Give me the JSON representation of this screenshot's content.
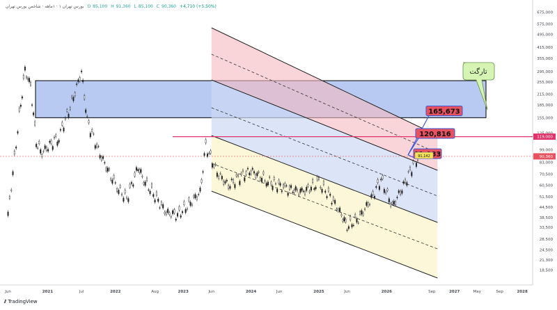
{
  "header": {
    "symbol": "بورس تهران ۱ · ۱ماهه · شاخص بورس تهران",
    "o_label": "O",
    "o": "85,100",
    "h_label": "H",
    "h": "91,360",
    "l_label": "L",
    "l": "85,100",
    "c_label": "C",
    "c": "90,360",
    "change": "+4,710 (+5.50%)"
  },
  "brand": "TradingView",
  "colors": {
    "target_box": "#7d9ee6",
    "red_label": "#e8515f",
    "price_tag": "#e8515f",
    "resistance_line": "#e0336b",
    "callout_fill": "#d6f5b5",
    "channel_upper": "#f5b9c0",
    "channel_mid": "#cdd8f3",
    "channel_lower": "#fbf5cf",
    "candle_up": "#26a69a",
    "candle_down": "#ef5350"
  },
  "chart_data": {
    "type": "candlestick",
    "title": "",
    "y_scale": "log",
    "ylim": [
      15000,
      700000
    ],
    "y_ticks": [
      "675,000",
      "575,000",
      "495,000",
      "415,000",
      "355,000",
      "295,000",
      "255,000",
      "215,000",
      "185,000",
      "155,000",
      "125,000",
      "99,000",
      "83,000",
      "70,500",
      "60,500",
      "51,500",
      "44,500",
      "38,500",
      "33,500",
      "28,500",
      "24,500",
      "21,300",
      "18,500"
    ],
    "y_tick_values": [
      675000,
      575000,
      495000,
      415000,
      355000,
      295000,
      255000,
      215000,
      185000,
      155000,
      125000,
      99000,
      83000,
      70500,
      60500,
      51500,
      44500,
      38500,
      33500,
      28500,
      24500,
      21300,
      18500
    ],
    "x_ticks": [
      "Jun",
      "2021",
      "Jul",
      "2022",
      "Aug",
      "2023",
      "Jun",
      "2024",
      "Jun",
      "2025",
      "Jun",
      "2026",
      "Sep",
      "2027",
      "May",
      "Sep",
      "2028"
    ],
    "x_tick_dates": [
      "2020-06",
      "2021-01",
      "2021-07",
      "2022-01",
      "2022-08",
      "2023-01",
      "2023-06",
      "2024-01",
      "2024-06",
      "2025-01",
      "2025-06",
      "2026-01",
      "2026-09",
      "2027-01",
      "2027-05",
      "2027-09",
      "2028-01"
    ],
    "price_series": [
      {
        "date": "2020-06",
        "value": 40000
      },
      {
        "date": "2020-08",
        "value": 160000
      },
      {
        "date": "2020-09",
        "value": 300000
      },
      {
        "date": "2020-10",
        "value": 240000
      },
      {
        "date": "2020-11",
        "value": 110000
      },
      {
        "date": "2020-12",
        "value": 95000
      },
      {
        "date": "2021-03",
        "value": 120000
      },
      {
        "date": "2021-05",
        "value": 180000
      },
      {
        "date": "2021-07",
        "value": 295000
      },
      {
        "date": "2021-08",
        "value": 150000
      },
      {
        "date": "2021-10",
        "value": 98000
      },
      {
        "date": "2022-01",
        "value": 60000
      },
      {
        "date": "2022-03",
        "value": 50000
      },
      {
        "date": "2022-05",
        "value": 78000
      },
      {
        "date": "2022-06",
        "value": 65000
      },
      {
        "date": "2022-08",
        "value": 52000
      },
      {
        "date": "2022-10",
        "value": 41000
      },
      {
        "date": "2022-12",
        "value": 40000
      },
      {
        "date": "2023-02",
        "value": 46000
      },
      {
        "date": "2023-04",
        "value": 55000
      },
      {
        "date": "2023-05",
        "value": 105000
      },
      {
        "date": "2023-07",
        "value": 72000
      },
      {
        "date": "2023-09",
        "value": 60000
      },
      {
        "date": "2023-11",
        "value": 68000
      },
      {
        "date": "2024-01",
        "value": 74000
      },
      {
        "date": "2024-04",
        "value": 64000
      },
      {
        "date": "2024-07",
        "value": 58000
      },
      {
        "date": "2024-10",
        "value": 55000
      },
      {
        "date": "2025-01",
        "value": 62000
      },
      {
        "date": "2025-03",
        "value": 52000
      },
      {
        "date": "2025-05",
        "value": 40000
      },
      {
        "date": "2025-06",
        "value": 34000
      },
      {
        "date": "2025-08",
        "value": 38000
      },
      {
        "date": "2025-10",
        "value": 48000
      },
      {
        "date": "2025-12",
        "value": 66000
      },
      {
        "date": "2026-02",
        "value": 45000
      },
      {
        "date": "2026-04",
        "value": 60000
      },
      {
        "date": "2026-06",
        "value": 85000
      },
      {
        "date": "2026-07",
        "value": 90360
      }
    ],
    "last_price": "90,360",
    "last_price_value": 90360,
    "resistance": {
      "label": "119,000",
      "value": 119000
    },
    "targets": [
      {
        "label": "165,673",
        "value": 165673
      },
      {
        "label": "120,816",
        "value": 120816
      },
      {
        "label": "91,083",
        "value": 91083
      }
    ],
    "current_tag": {
      "label": "91,142",
      "value": 91142
    },
    "target_zone": {
      "from": 155000,
      "to": 260000
    },
    "annotation": "تارگت",
    "grid": false
  }
}
